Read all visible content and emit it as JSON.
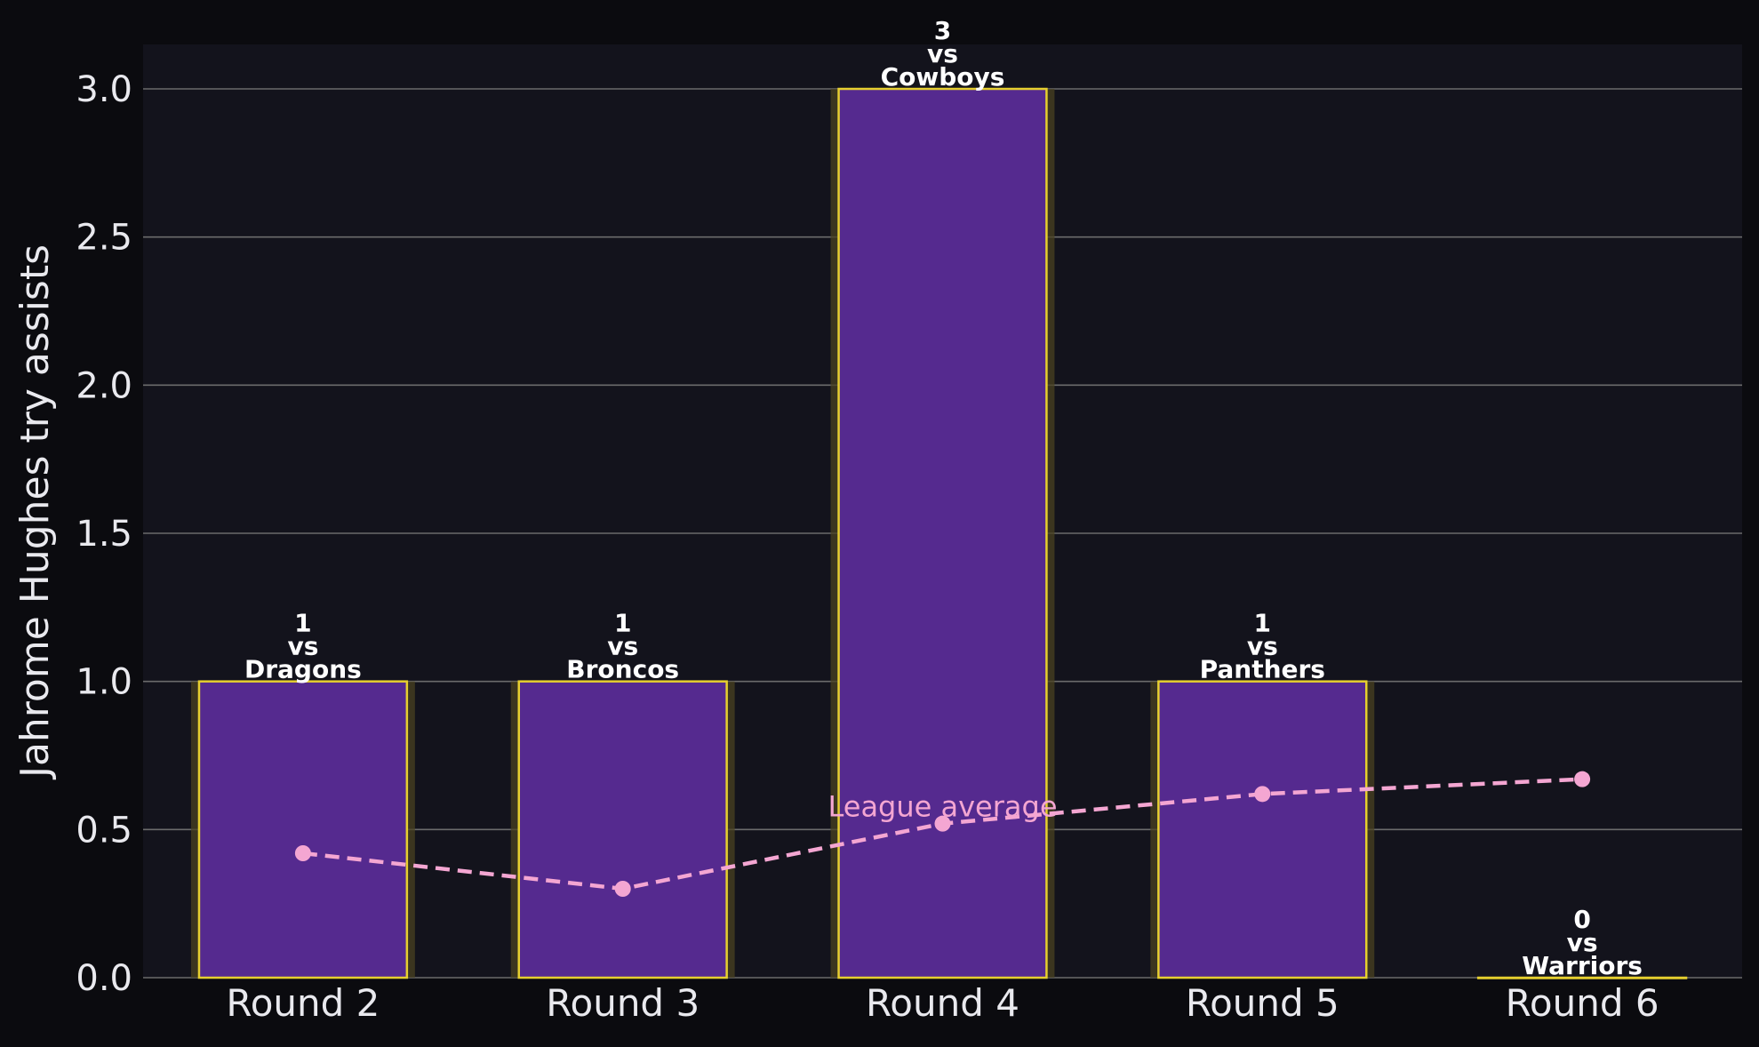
{
  "colors": {
    "page_background": "#0b0b0f",
    "plot_background": "#13131c",
    "grid": "#6b6b6b",
    "bar_fill": "#552a8f",
    "bar_edge": "#e6cf2f",
    "bar_glow": "#4a4120",
    "average_line": "#f4a6d2",
    "text": "#e9e9ee",
    "label_text": "#ffffff"
  },
  "chart_data": {
    "type": "bar",
    "ylabel": "Jahrome Hughes try assists",
    "xlabel": "",
    "ylim": [
      0,
      3.15
    ],
    "yticks": [
      "0.0",
      "0.5",
      "1.0",
      "1.5",
      "2.0",
      "2.5",
      "3.0"
    ],
    "grid": "y",
    "categories": [
      "Round 2",
      "Round 3",
      "Round 4",
      "Round 5",
      "Round 6"
    ],
    "values": [
      1,
      1,
      3,
      1,
      0
    ],
    "bar_labels": [
      [
        "1",
        "vs",
        "Dragons"
      ],
      [
        "1",
        "vs",
        "Broncos"
      ],
      [
        "3",
        "vs",
        "Cowboys"
      ],
      [
        "1",
        "vs",
        "Panthers"
      ],
      [
        "0",
        "vs",
        "Warriors"
      ]
    ],
    "series": [
      {
        "name": "League average",
        "style": "dashed-line-markers",
        "values": [
          0.42,
          0.3,
          0.52,
          0.62,
          0.67
        ]
      }
    ]
  }
}
